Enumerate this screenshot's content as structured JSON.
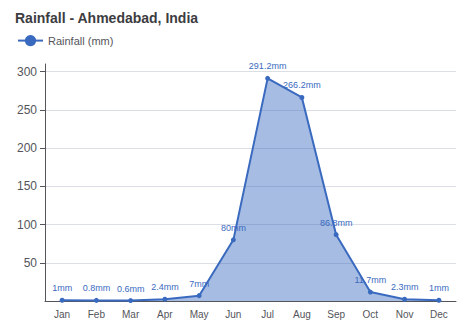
{
  "chart_data": {
    "type": "line",
    "title": "Rainfall - Ahmedabad, India",
    "categories": [
      "Jan",
      "Feb",
      "Mar",
      "Apr",
      "May",
      "Jun",
      "Jul",
      "Aug",
      "Sep",
      "Oct",
      "Nov",
      "Dec"
    ],
    "series": [
      {
        "name": "Rainfall (mm)",
        "color": "#3a6abf",
        "values": [
          1,
          0.8,
          0.6,
          2.4,
          7,
          80,
          291.2,
          266.2,
          86.8,
          11.7,
          2.3,
          1
        ],
        "value_labels": [
          "1mm",
          "0.8mm",
          "0.6mm",
          "2.4mm",
          "7mm",
          "80mm",
          "291.2mm",
          "266.2mm",
          "86.8mm",
          "11.7mm",
          "2.3mm",
          "1mm"
        ]
      }
    ],
    "ylim": [
      0,
      310
    ],
    "yticks": [
      50,
      100,
      150,
      200,
      250,
      300
    ],
    "grid": true,
    "legend": "upper left",
    "data_labels": true
  }
}
